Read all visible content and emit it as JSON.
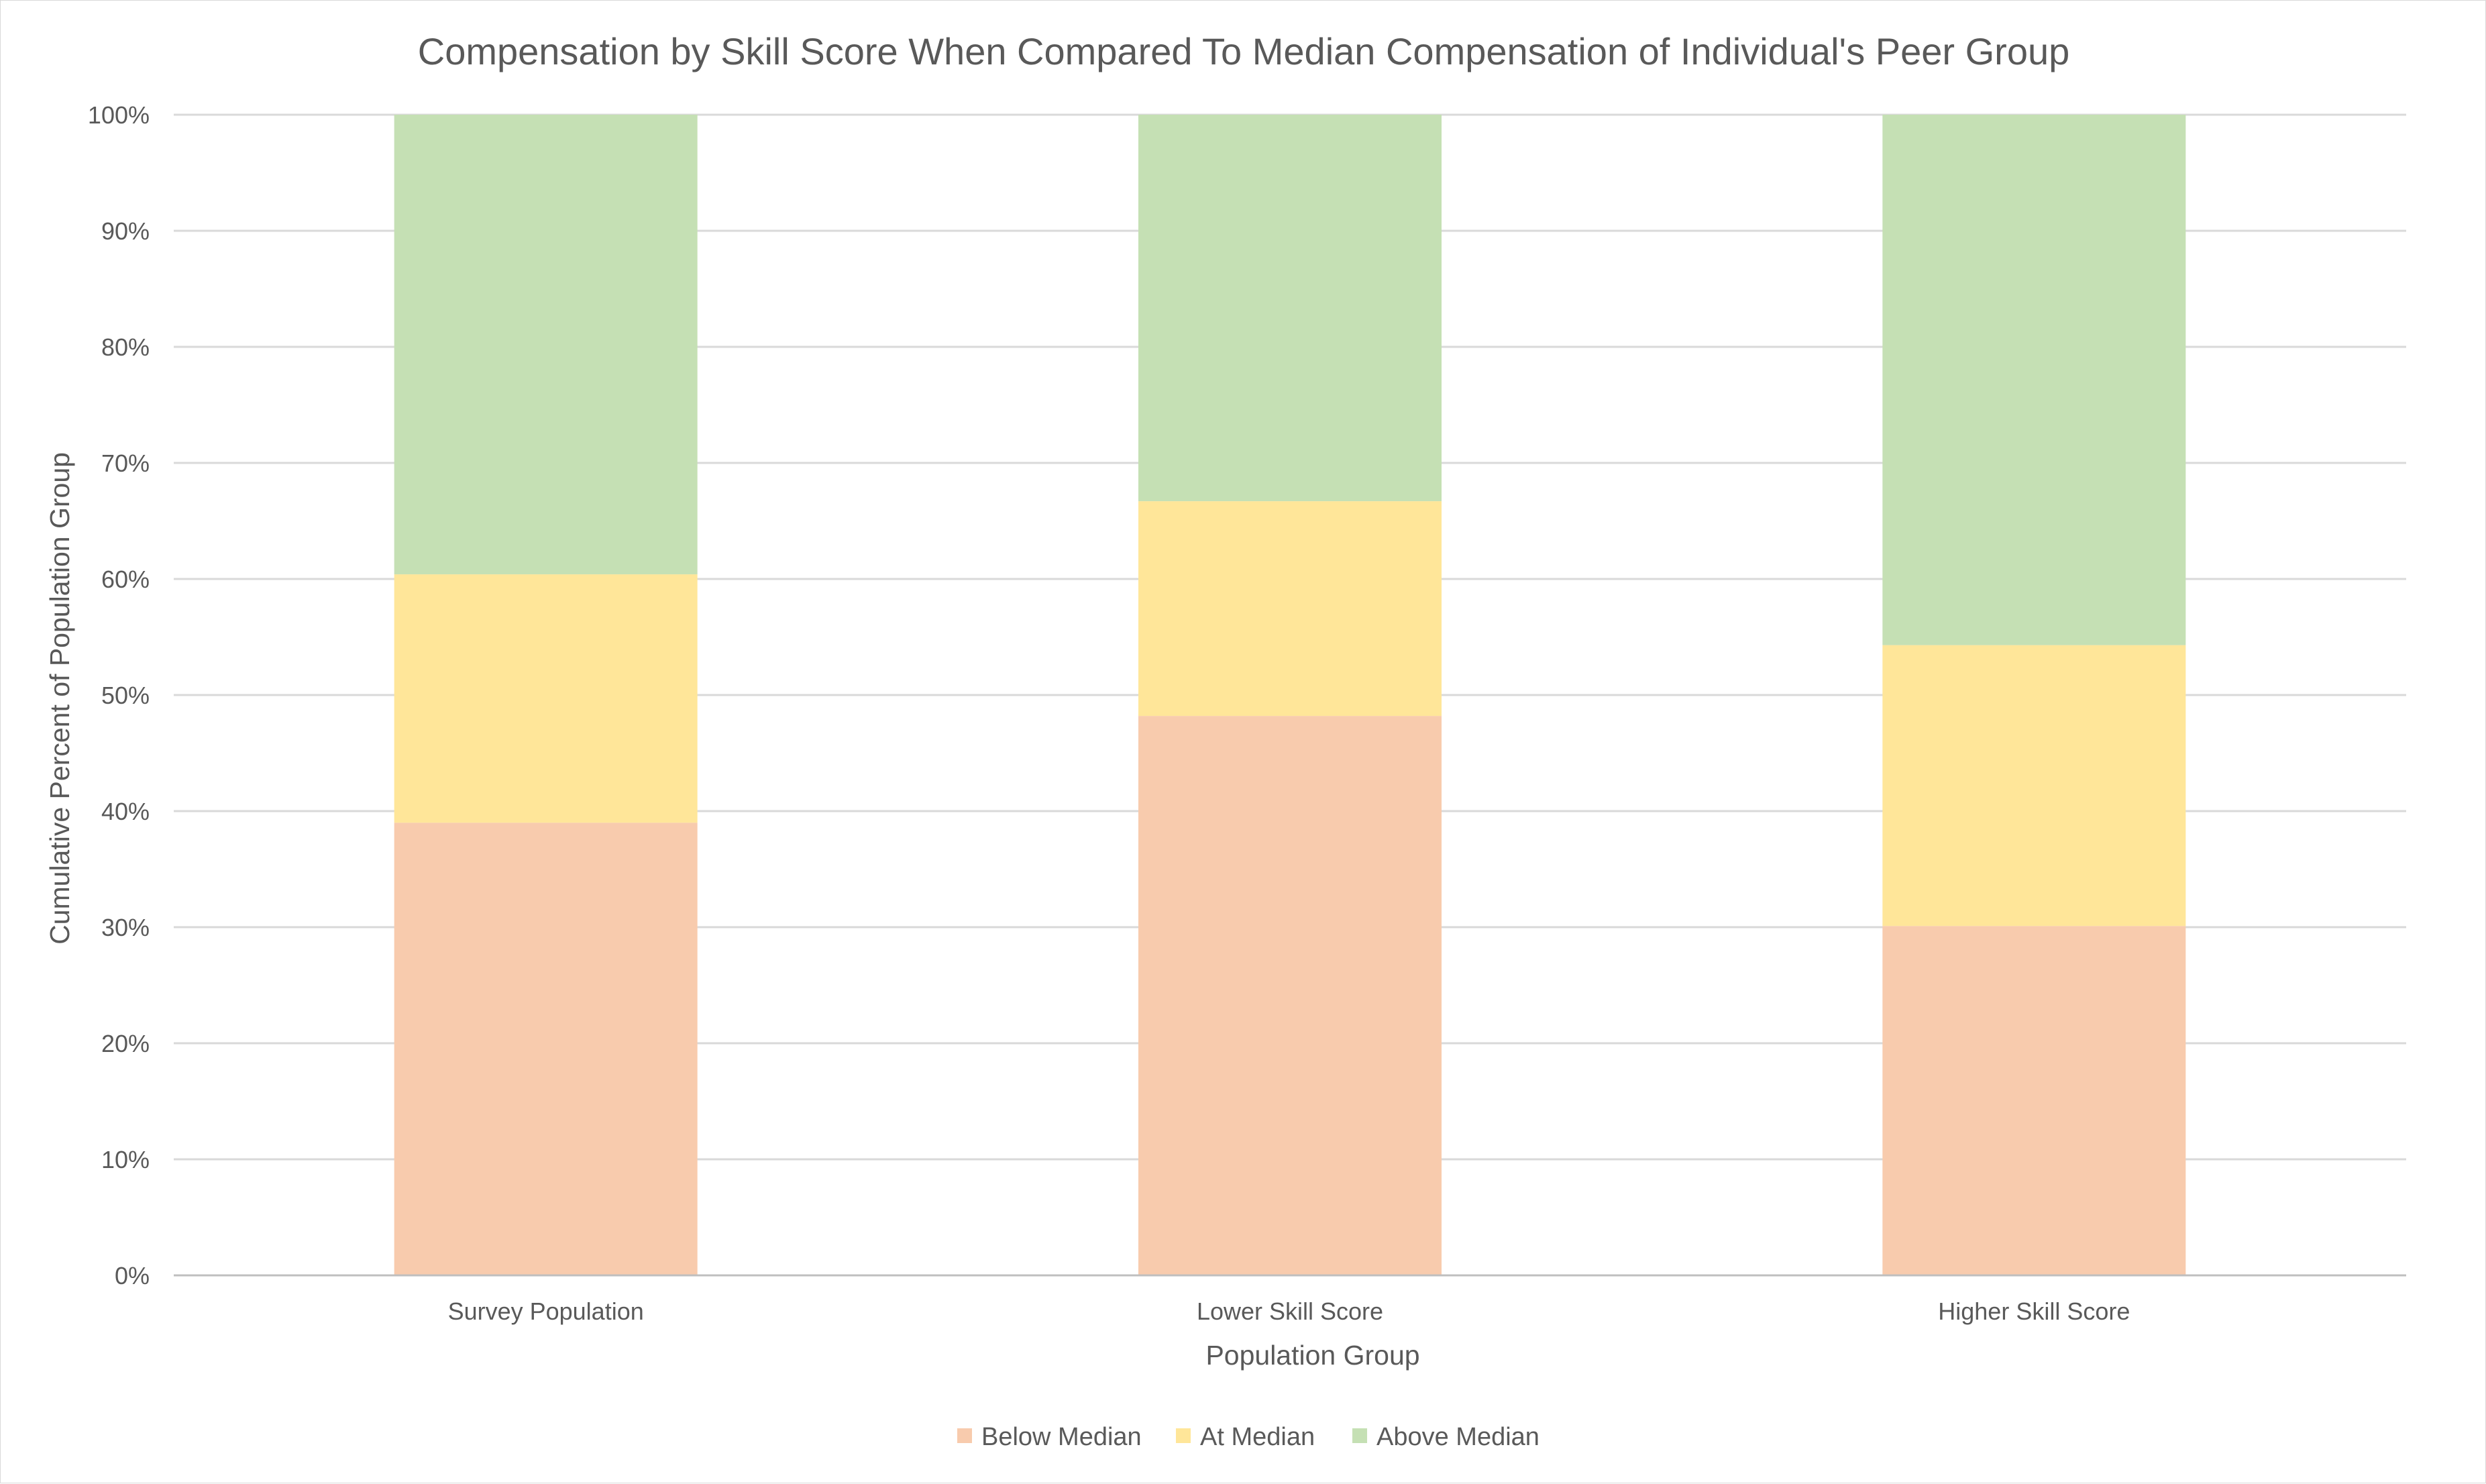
{
  "chart_data": {
    "type": "bar",
    "stacked": true,
    "title": "Compensation by Skill Score When Compared To Median Compensation of Individual's Peer Group",
    "xlabel": "Population Group",
    "ylabel": "Cumulative Percent of Population Group",
    "categories": [
      "Survey Population",
      "Lower Skill Score",
      "Higher Skill Score"
    ],
    "series": [
      {
        "name": "Below Median",
        "color": "#f8cbad",
        "values": [
          39,
          48.2,
          30.1
        ]
      },
      {
        "name": "At Median",
        "color": "#ffe699",
        "values": [
          21.4,
          18.5,
          24.2
        ]
      },
      {
        "name": "Above Median",
        "color": "#c5e0b4",
        "values": [
          39.6,
          33.3,
          45.7
        ]
      }
    ],
    "ylim": [
      0,
      100
    ],
    "yticks": [
      "0%",
      "10%",
      "20%",
      "30%",
      "40%",
      "50%",
      "60%",
      "70%",
      "80%",
      "90%",
      "100%"
    ],
    "grid": true,
    "legend_position": "bottom"
  }
}
